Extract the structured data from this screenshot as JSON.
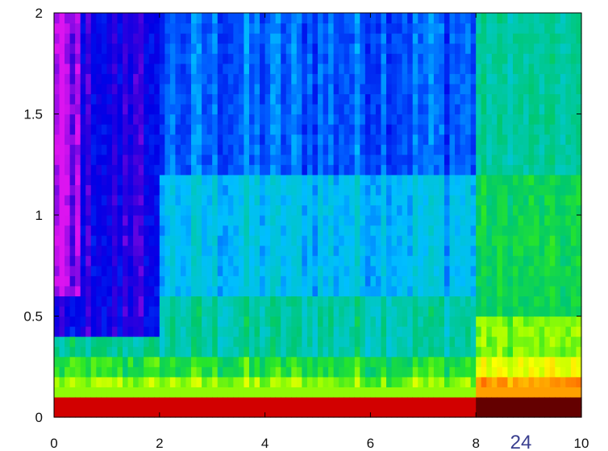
{
  "chart_data": {
    "type": "heatmap",
    "title": "",
    "xlabel": "",
    "ylabel": "",
    "xlim": [
      0,
      10
    ],
    "ylim": [
      0,
      2
    ],
    "x_ticks": [
      "0",
      "2",
      "4",
      "6",
      "8",
      "10"
    ],
    "y_ticks": [
      "0",
      "0.5",
      "1",
      "1.5",
      "2"
    ],
    "colormap": "jet",
    "grid": false,
    "legend": "none",
    "regions": [
      {
        "x0": 0,
        "x1": 8,
        "y0": 0.0,
        "y1": 0.1,
        "level": 0.95
      },
      {
        "x0": 8,
        "x1": 10,
        "y0": 0.0,
        "y1": 0.1,
        "level": 1.0
      },
      {
        "x0": 8,
        "x1": 10,
        "y0": 0.1,
        "y1": 0.2,
        "level": 0.82
      },
      {
        "x0": 0,
        "x1": 8,
        "y0": 0.1,
        "y1": 0.2,
        "level": 0.63
      },
      {
        "x0": 8,
        "x1": 10,
        "y0": 0.2,
        "y1": 0.3,
        "level": 0.7
      },
      {
        "x0": 0,
        "x1": 8,
        "y0": 0.2,
        "y1": 0.3,
        "level": 0.55
      },
      {
        "x0": 8,
        "x1": 10,
        "y0": 0.3,
        "y1": 0.5,
        "level": 0.62
      },
      {
        "x0": 0,
        "x1": 8,
        "y0": 0.3,
        "y1": 0.6,
        "level": 0.45
      },
      {
        "x0": 8,
        "x1": 10,
        "y0": 0.5,
        "y1": 1.2,
        "level": 0.52
      },
      {
        "x0": 0,
        "x1": 8,
        "y0": 0.6,
        "y1": 1.2,
        "level": 0.35
      },
      {
        "x0": 8,
        "x1": 10,
        "y0": 1.2,
        "y1": 2.0,
        "level": 0.45
      },
      {
        "x0": 0,
        "x1": 8,
        "y0": 1.2,
        "y1": 2.0,
        "level": 0.25
      },
      {
        "x0": 0,
        "x1": 2,
        "y0": 0.4,
        "y1": 2.0,
        "level": 0.12
      },
      {
        "x0": 0,
        "x1": 0.5,
        "y0": 0.6,
        "y1": 2.0,
        "level": 0.0
      }
    ]
  },
  "page_number": "24"
}
